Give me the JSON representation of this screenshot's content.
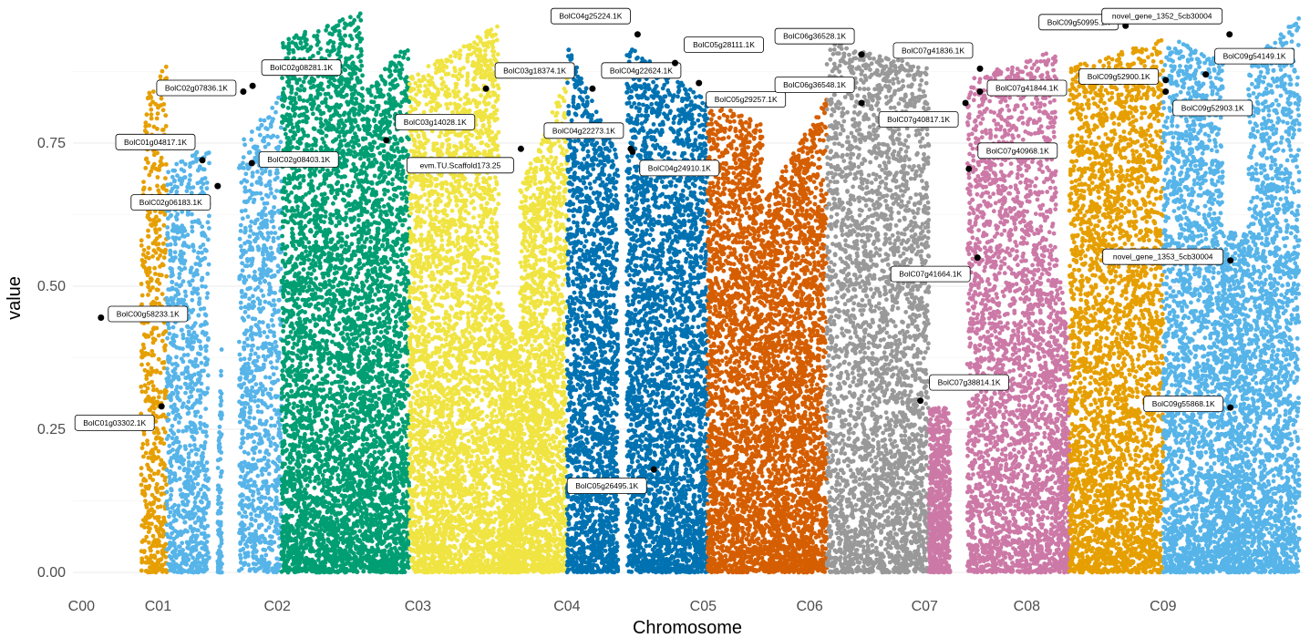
{
  "chart_data": {
    "type": "scatter",
    "title": "",
    "xlabel": "Chromosome",
    "ylabel": "value",
    "ylim": [
      -0.02,
      0.985
    ],
    "y_ticks": [
      0.0,
      0.25,
      0.5,
      0.75
    ],
    "y_tick_labels": [
      "0.00",
      "0.25",
      "0.50",
      "0.75"
    ],
    "grid": true,
    "legend": "none",
    "chromosomes": [
      {
        "name": "C00",
        "color": "#E69F00",
        "density": 0.55,
        "max": 0.9,
        "segments": [
          [
            0.07,
            0.1,
            0.9,
            1.0
          ]
        ]
      },
      {
        "name": "C01",
        "color": "#56B4E9",
        "density": 0.55,
        "max": 0.88,
        "segments": [
          [
            0.1,
            0.15,
            0.8,
            0.85
          ],
          [
            0.16,
            0.165,
            0.2,
            0.5
          ],
          [
            0.185,
            0.235,
            0.85,
            0.95
          ]
        ]
      },
      {
        "name": "C02",
        "color": "#009E73",
        "density": 1.0,
        "max": 0.98,
        "segments": [
          [
            0.235,
            0.33,
            0.95,
            1.0
          ],
          [
            0.33,
            0.385,
            0.85,
            0.95
          ]
        ]
      },
      {
        "name": "C03",
        "color": "#F0E442",
        "density": 0.95,
        "max": 0.96,
        "segments": [
          [
            0.385,
            0.49,
            0.9,
            1.0
          ],
          [
            0.49,
            0.515,
            0.5,
            0.4
          ],
          [
            0.515,
            0.57,
            0.7,
            0.9
          ]
        ]
      },
      {
        "name": "C04",
        "color": "#0072B2",
        "density": 0.95,
        "max": 0.97,
        "segments": [
          [
            0.57,
            0.63,
            0.95,
            0.75
          ],
          [
            0.64,
            0.735,
            0.95,
            0.85
          ]
        ]
      },
      {
        "name": "C05",
        "color": "#D55E00",
        "density": 0.95,
        "max": 0.92,
        "segments": [
          [
            0.735,
            0.8,
            0.9,
            0.85
          ],
          [
            0.8,
            0.875,
            0.7,
            0.9
          ]
        ]
      },
      {
        "name": "C06",
        "color": "#999999",
        "density": 0.75,
        "max": 0.98,
        "segments": [
          [
            0.875,
            0.995,
            0.95,
            0.9
          ]
        ]
      },
      {
        "name": "C07",
        "color": "#CC79A7",
        "density": 0.75,
        "max": 0.96,
        "segments": [
          [
            0.995,
            1.02,
            0.3,
            0.3
          ],
          [
            1.04,
            1.145,
            0.9,
            0.95
          ],
          [
            1.145,
            1.16,
            0.6,
            0.4
          ]
        ]
      },
      {
        "name": "C08",
        "color": "#E69F00",
        "density": 0.85,
        "max": 0.98,
        "segments": [
          [
            1.16,
            1.27,
            0.9,
            0.95
          ]
        ]
      },
      {
        "name": "C09",
        "color": "#56B4E9",
        "density": 0.85,
        "max": 0.99,
        "segments": [
          [
            1.27,
            1.34,
            0.95,
            0.9
          ],
          [
            1.34,
            1.37,
            0.6,
            0.6
          ],
          [
            1.37,
            1.43,
            0.9,
            0.98
          ]
        ]
      }
    ],
    "x_ticks": [
      {
        "label": "C00",
        "x": 0.0
      },
      {
        "label": "C01",
        "x": 0.09
      },
      {
        "label": "C02",
        "x": 0.23
      },
      {
        "label": "C03",
        "x": 0.395
      },
      {
        "label": "C04",
        "x": 0.57
      },
      {
        "label": "C05",
        "x": 0.73
      },
      {
        "label": "C06",
        "x": 0.855
      },
      {
        "label": "C07",
        "x": 0.99
      },
      {
        "label": "C08",
        "x": 1.11
      },
      {
        "label": "C09",
        "x": 1.27
      }
    ],
    "xlim": [
      -0.01,
      1.435
    ],
    "highlighted": [
      {
        "label": "BolC00g58233.1K",
        "x": 0.023,
        "y": 0.445,
        "dir": "right"
      },
      {
        "label": "BolC01g03302.1K",
        "x": 0.094,
        "y": 0.29,
        "dir": "below-left"
      },
      {
        "label": "BolC01g04817.1K",
        "x": 0.142,
        "y": 0.72,
        "dir": "up-left"
      },
      {
        "label": "BolC02g06183.1K",
        "x": 0.16,
        "y": 0.675,
        "dir": "below-left"
      },
      {
        "label": "BolC02g07836.1K",
        "x": 0.19,
        "y": 0.84,
        "dir": "left"
      },
      {
        "label": "BolC02g08281.1K",
        "x": 0.201,
        "y": 0.85,
        "dir": "up-right"
      },
      {
        "label": "BolC02g08403.1K",
        "x": 0.2,
        "y": 0.715,
        "dir": "right"
      },
      {
        "label": "BolC03g14028.1K",
        "x": 0.358,
        "y": 0.755,
        "dir": "up-right"
      },
      {
        "label": "BolC03g18374.1K",
        "x": 0.475,
        "y": 0.845,
        "dir": "up-right"
      },
      {
        "label": "evm.TU.Scaffold173.25",
        "x": 0.516,
        "y": 0.74,
        "dir": "below-left"
      },
      {
        "label": "BolC04g25224.1K",
        "x": 0.653,
        "y": 0.94,
        "dir": "up-left"
      },
      {
        "label": "BolC04g22624.1K",
        "x": 0.6,
        "y": 0.845,
        "dir": "up-right"
      },
      {
        "label": "BolC04g22273.1K",
        "x": 0.645,
        "y": 0.74,
        "dir": "up-left"
      },
      {
        "label": "BolC04g24910.1K",
        "x": 0.647,
        "y": 0.735,
        "dir": "below-right"
      },
      {
        "label": "BolC05g28111.1K",
        "x": 0.697,
        "y": 0.89,
        "dir": "up-right"
      },
      {
        "label": "BolC05g29257.1K",
        "x": 0.725,
        "y": 0.855,
        "dir": "below-right"
      },
      {
        "label": "BolC05g26495.1K",
        "x": 0.672,
        "y": 0.18,
        "dir": "below-left"
      },
      {
        "label": "BolC06g36528.1K",
        "x": 0.916,
        "y": 0.905,
        "dir": "up-left"
      },
      {
        "label": "BolC06g36548.1K",
        "x": 0.916,
        "y": 0.82,
        "dir": "up-left"
      },
      {
        "label": "BolC07g41836.1K",
        "x": 1.055,
        "y": 0.88,
        "dir": "up-left"
      },
      {
        "label": "BolC07g41844.1K",
        "x": 1.055,
        "y": 0.84,
        "dir": "right"
      },
      {
        "label": "BolC07g40817.1K",
        "x": 1.038,
        "y": 0.82,
        "dir": "below-left"
      },
      {
        "label": "BolC07g40968.1K",
        "x": 1.042,
        "y": 0.705,
        "dir": "up-right"
      },
      {
        "label": "BolC07g41664.1K",
        "x": 1.052,
        "y": 0.55,
        "dir": "below-left"
      },
      {
        "label": "BolC07g38814.1K",
        "x": 0.985,
        "y": 0.3,
        "dir": "up-right"
      },
      {
        "label": "BolC09g50995.1K",
        "x": 1.226,
        "y": 0.955,
        "dir": "left"
      },
      {
        "label": "novel_gene_1352_5cb30004",
        "x": 1.348,
        "y": 0.94,
        "dir": "up-left"
      },
      {
        "label": "BolC09g52900.1K",
        "x": 1.273,
        "y": 0.86,
        "dir": "left"
      },
      {
        "label": "BolC09g54149.1K",
        "x": 1.32,
        "y": 0.87,
        "dir": "up-right"
      },
      {
        "label": "BolC09g52903.1K",
        "x": 1.273,
        "y": 0.84,
        "dir": "below-right"
      },
      {
        "label": "novel_gene_1353_5cb30004",
        "x": 1.349,
        "y": 0.545,
        "dir": "left"
      },
      {
        "label": "BolC09g55868.1K",
        "x": 1.349,
        "y": 0.288,
        "dir": "left"
      }
    ]
  }
}
